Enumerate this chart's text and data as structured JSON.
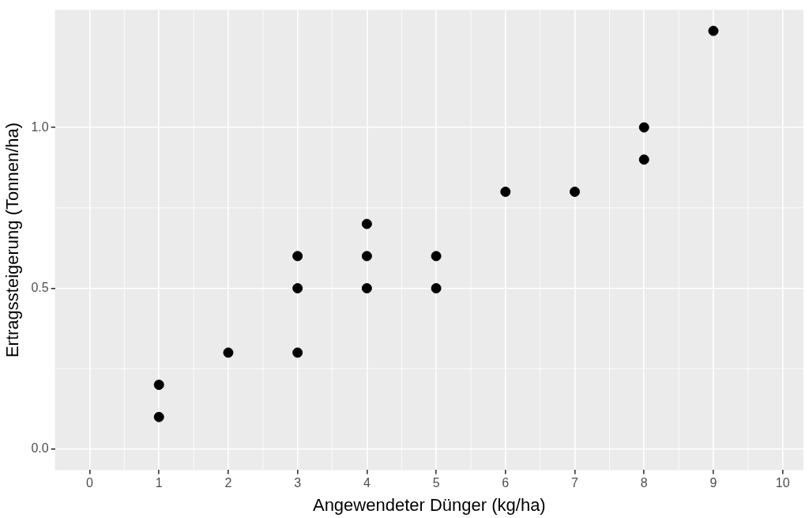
{
  "chart_data": {
    "type": "scatter",
    "xlabel": "Angewendeter Dünger (kg/ha)",
    "ylabel": "Ertragssteigerung (Tonnen/ha)",
    "x": [
      1,
      1,
      2,
      3,
      3,
      3,
      4,
      4,
      4,
      5,
      5,
      6,
      7,
      8,
      8,
      9
    ],
    "values": [
      0.1,
      0.2,
      0.3,
      0.3,
      0.5,
      0.6,
      0.5,
      0.6,
      0.7,
      0.5,
      0.6,
      0.8,
      0.8,
      0.9,
      1.0,
      1.3
    ],
    "color": "#000000",
    "marker": "circle",
    "xlim": [
      -0.5,
      10.3
    ],
    "xticks": [
      0,
      1,
      2,
      3,
      4,
      5,
      6,
      7,
      8,
      9,
      10
    ],
    "ylim": [
      -0.065,
      1.365
    ],
    "yticks": [
      {
        "value": 0,
        "label": "0.0"
      },
      {
        "value": 0.5,
        "label": "0.5"
      },
      {
        "value": 1,
        "label": "1.0"
      }
    ],
    "grid": true,
    "legend": false
  }
}
